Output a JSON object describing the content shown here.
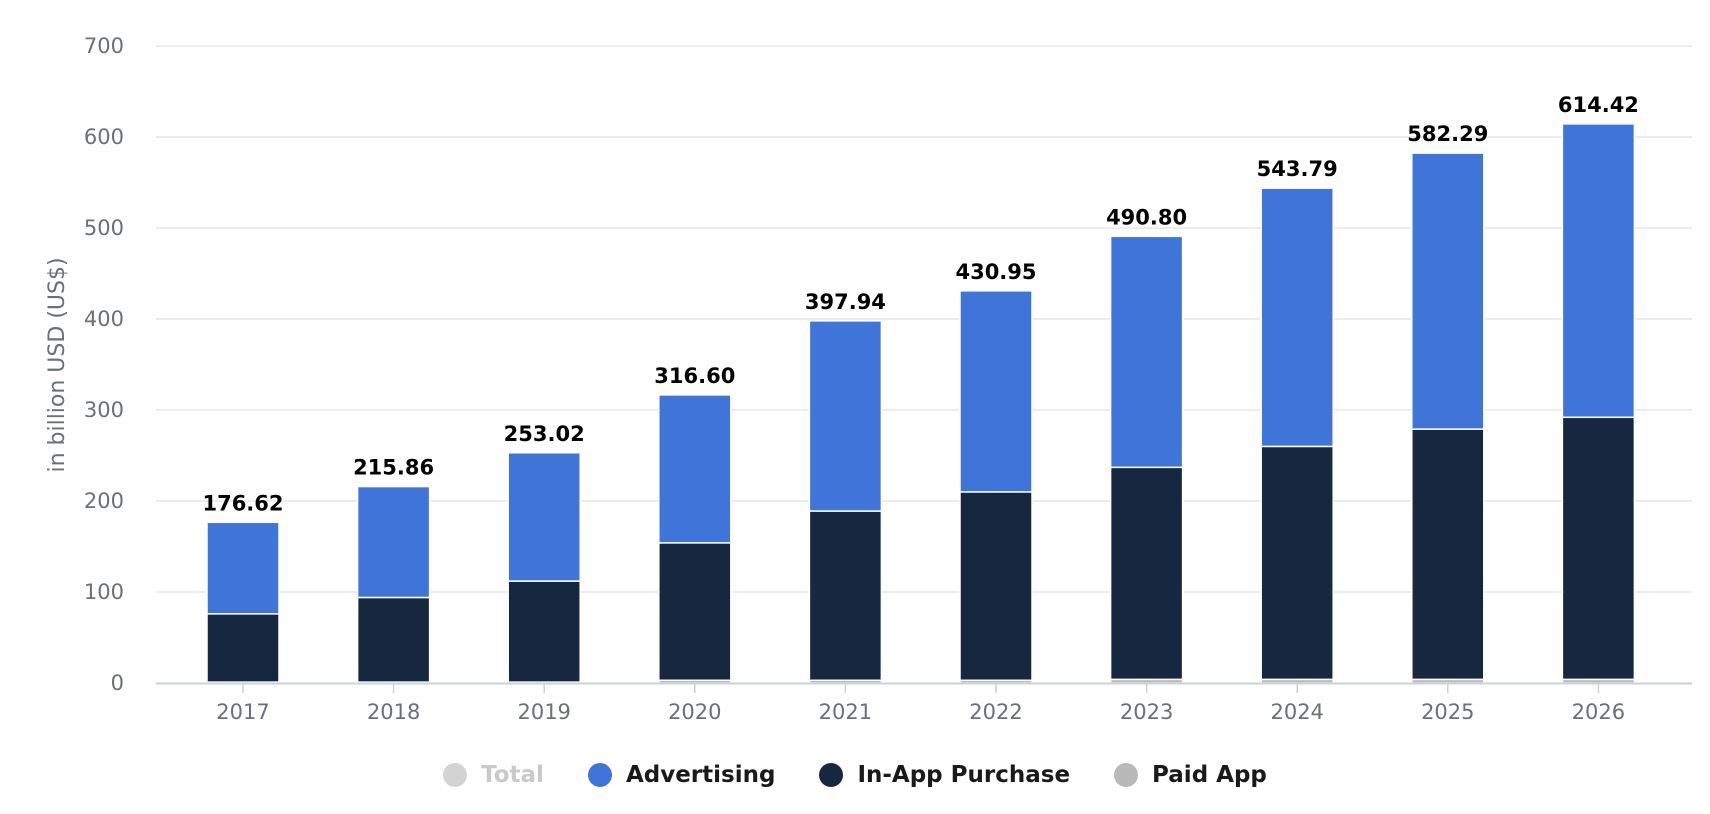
{
  "chart_data": {
    "type": "bar",
    "stacked": true,
    "ylabel": "in billion USD (US$)",
    "xlabel": "",
    "ylim": [
      0,
      700
    ],
    "yticks": [
      0,
      100,
      200,
      300,
      400,
      500,
      600,
      700
    ],
    "grid": true,
    "legend_position": "bottom",
    "categories": [
      "2017",
      "2018",
      "2019",
      "2020",
      "2021",
      "2022",
      "2023",
      "2024",
      "2025",
      "2026"
    ],
    "totals": [
      "176.62",
      "215.86",
      "253.02",
      "316.60",
      "397.94",
      "430.95",
      "490.80",
      "543.79",
      "582.29",
      "614.42"
    ],
    "series": [
      {
        "name": "Paid App",
        "color": "#b9b9b9",
        "values": [
          1,
          1,
          1,
          3,
          3,
          3,
          4,
          4,
          4,
          4
        ]
      },
      {
        "name": "In-App Purchase",
        "color": "#162840",
        "values": [
          75,
          93,
          111,
          151,
          186,
          207,
          233,
          256,
          275,
          288
        ]
      },
      {
        "name": "Advertising",
        "color": "#3f74d8",
        "values": [
          100.62,
          121.86,
          141.02,
          162.6,
          208.94,
          220.95,
          253.8,
          283.79,
          303.29,
          322.42
        ]
      }
    ]
  },
  "legend": [
    {
      "label": "Total",
      "color": "#d3d3d3",
      "active": false
    },
    {
      "label": "Advertising",
      "color": "#3f74d8",
      "active": true
    },
    {
      "label": "In-App Purchase",
      "color": "#162840",
      "active": true
    },
    {
      "label": "Paid App",
      "color": "#b9b9b9",
      "active": true
    }
  ]
}
